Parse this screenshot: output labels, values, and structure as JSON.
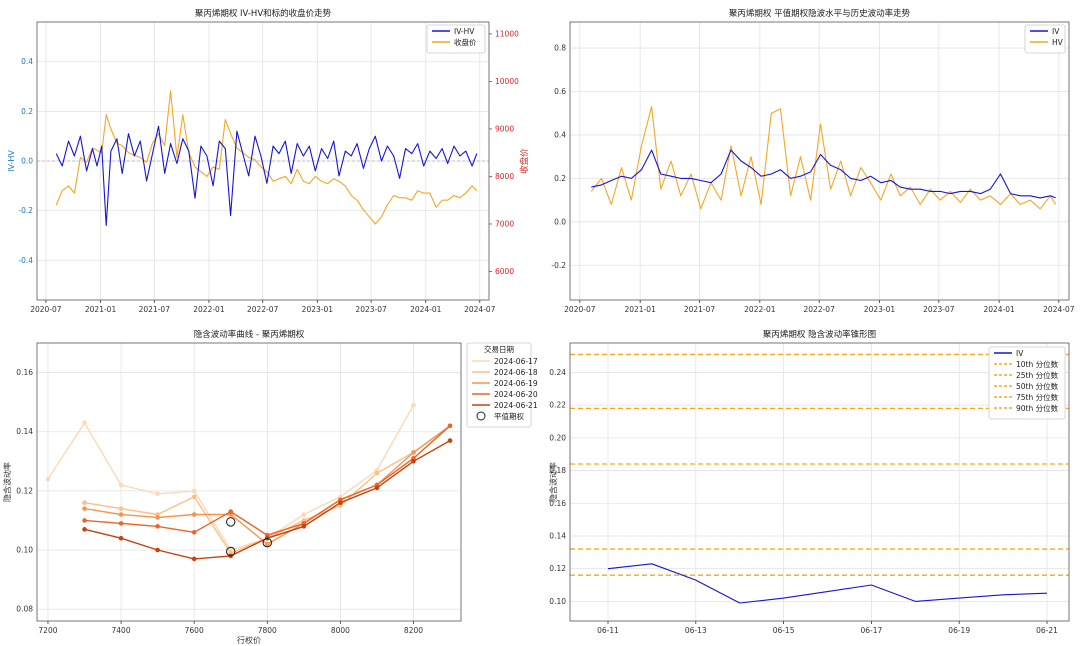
{
  "chart_data": [
    {
      "type": "line",
      "title": "聚丙烯期权 IV-HV和标的收盘价走势",
      "xlabel": "",
      "ylabel": "IV-HV",
      "y2label": "收盘价",
      "xlim": [
        "2020-06-01",
        "2024-08-01"
      ],
      "ylim": [
        -0.56,
        0.56
      ],
      "y2lim": [
        5400,
        11250
      ],
      "xticks": [
        "2020-07",
        "2021-01",
        "2021-07",
        "2022-01",
        "2022-07",
        "2023-01",
        "2023-07",
        "2024-01",
        "2024-07"
      ],
      "yticks": [
        -0.4,
        -0.2,
        0.0,
        0.2,
        0.4
      ],
      "y2ticks": [
        6000,
        7000,
        8000,
        9000,
        10000,
        11000
      ],
      "grid": true,
      "legend_position": "top-right",
      "colors": {
        "IV-HV": "#1515d6",
        "收盘价": "#f5a623",
        "left_axis": "#1f77b4",
        "right_axis": "#d62728"
      },
      "series": [
        {
          "name": "IV-HV",
          "axis": "left",
          "x": [
            "2020-08-05",
            "2020-08-25",
            "2020-09-15",
            "2020-10-05",
            "2020-10-25",
            "2020-11-15",
            "2020-12-05",
            "2020-12-20",
            "2021-01-05",
            "2021-01-20",
            "2021-02-05",
            "2021-02-25",
            "2021-03-15",
            "2021-04-05",
            "2021-04-25",
            "2021-05-15",
            "2021-06-05",
            "2021-06-25",
            "2021-07-15",
            "2021-08-05",
            "2021-08-25",
            "2021-09-15",
            "2021-10-05",
            "2021-10-25",
            "2021-11-15",
            "2021-12-05",
            "2021-12-25",
            "2022-01-15",
            "2022-02-05",
            "2022-02-25",
            "2022-03-15",
            "2022-04-05",
            "2022-04-25",
            "2022-05-15",
            "2022-06-05",
            "2022-06-25",
            "2022-07-15",
            "2022-08-05",
            "2022-08-25",
            "2022-09-15",
            "2022-10-05",
            "2022-10-25",
            "2022-11-15",
            "2022-12-05",
            "2022-12-25",
            "2023-01-15",
            "2023-02-05",
            "2023-02-25",
            "2023-03-15",
            "2023-04-05",
            "2023-04-25",
            "2023-05-15",
            "2023-06-05",
            "2023-06-25",
            "2023-07-15",
            "2023-08-05",
            "2023-08-25",
            "2023-09-15",
            "2023-10-05",
            "2023-10-25",
            "2023-11-15",
            "2023-12-05",
            "2023-12-25",
            "2024-01-15",
            "2024-02-05",
            "2024-02-25",
            "2024-03-15",
            "2024-04-05",
            "2024-04-25",
            "2024-05-15",
            "2024-06-05",
            "2024-06-21"
          ],
          "values": [
            0.03,
            -0.02,
            0.08,
            0.02,
            0.1,
            -0.04,
            0.05,
            -0.02,
            0.06,
            -0.26,
            0.04,
            0.09,
            -0.05,
            0.11,
            0.02,
            0.08,
            -0.08,
            0.03,
            0.14,
            -0.05,
            0.07,
            -0.01,
            0.09,
            0.04,
            -0.15,
            0.06,
            0.02,
            -0.1,
            0.08,
            0.05,
            -0.22,
            0.12,
            0.03,
            -0.06,
            0.1,
            0.02,
            -0.09,
            0.06,
            0.03,
            0.08,
            -0.05,
            0.07,
            0.02,
            0.06,
            -0.04,
            0.05,
            0.01,
            0.08,
            -0.06,
            0.04,
            0.02,
            0.07,
            -0.03,
            0.05,
            0.1,
            0.0,
            0.06,
            0.02,
            -0.07,
            0.05,
            0.03,
            0.07,
            -0.02,
            0.04,
            0.01,
            0.05,
            -0.01,
            0.06,
            0.02,
            0.04,
            -0.02,
            0.03
          ]
        },
        {
          "name": "收盘价",
          "axis": "right",
          "x": [
            "2020-08-05",
            "2020-08-25",
            "2020-09-15",
            "2020-10-05",
            "2020-10-25",
            "2020-11-15",
            "2020-12-05",
            "2020-12-20",
            "2021-01-05",
            "2021-01-20",
            "2021-02-05",
            "2021-02-25",
            "2021-03-15",
            "2021-04-05",
            "2021-04-25",
            "2021-05-15",
            "2021-06-05",
            "2021-06-25",
            "2021-07-15",
            "2021-08-05",
            "2021-08-25",
            "2021-09-15",
            "2021-10-05",
            "2021-10-25",
            "2021-11-15",
            "2021-12-05",
            "2021-12-25",
            "2022-01-15",
            "2022-02-05",
            "2022-02-25",
            "2022-03-15",
            "2022-04-05",
            "2022-04-25",
            "2022-05-15",
            "2022-06-05",
            "2022-06-25",
            "2022-07-15",
            "2022-08-05",
            "2022-08-25",
            "2022-09-15",
            "2022-10-05",
            "2022-10-25",
            "2022-11-15",
            "2022-12-05",
            "2022-12-25",
            "2023-01-15",
            "2023-02-05",
            "2023-02-25",
            "2023-03-15",
            "2023-04-05",
            "2023-04-25",
            "2023-05-15",
            "2023-06-05",
            "2023-06-25",
            "2023-07-15",
            "2023-08-05",
            "2023-08-25",
            "2023-09-15",
            "2023-10-05",
            "2023-10-25",
            "2023-11-15",
            "2023-12-05",
            "2023-12-25",
            "2024-01-15",
            "2024-02-05",
            "2024-02-25",
            "2024-03-15",
            "2024-04-05",
            "2024-04-25",
            "2024-05-15",
            "2024-06-05",
            "2024-06-21"
          ],
          "values": [
            7400,
            7700,
            7800,
            7650,
            8400,
            8300,
            8600,
            8550,
            8500,
            9300,
            9000,
            8700,
            8650,
            8500,
            8450,
            8400,
            8300,
            8700,
            8900,
            8650,
            9800,
            8400,
            9300,
            8500,
            8200,
            8100,
            8000,
            8200,
            8150,
            9200,
            8900,
            8600,
            8500,
            8400,
            8350,
            8200,
            8100,
            7900,
            7950,
            8000,
            7850,
            8150,
            7900,
            7850,
            8000,
            7900,
            7850,
            7950,
            7900,
            7800,
            7600,
            7500,
            7300,
            7150,
            7000,
            7150,
            7400,
            7600,
            7550,
            7550,
            7500,
            7700,
            7650,
            7650,
            7350,
            7500,
            7500,
            7600,
            7550,
            7650,
            7800,
            7700
          ]
        }
      ]
    },
    {
      "type": "line",
      "title": "聚丙烯期权 平值期权隐波水平与历史波动率走势",
      "xlabel": "",
      "ylabel": "",
      "xlim": [
        "2020-06-01",
        "2024-08-01"
      ],
      "ylim": [
        -0.36,
        0.92
      ],
      "xticks": [
        "2020-07",
        "2021-01",
        "2021-07",
        "2022-01",
        "2022-07",
        "2023-01",
        "2023-07",
        "2024-01",
        "2024-07"
      ],
      "yticks": [
        -0.2,
        0.0,
        0.2,
        0.4,
        0.6,
        0.8
      ],
      "grid": true,
      "legend_position": "top-right",
      "colors": {
        "IV": "#1515d6",
        "HV": "#f5a623"
      },
      "series": [
        {
          "name": "IV",
          "x": [
            "2020-08-05",
            "2020-09-05",
            "2020-10-05",
            "2020-11-05",
            "2020-12-05",
            "2021-01-05",
            "2021-02-05",
            "2021-03-05",
            "2021-04-05",
            "2021-05-05",
            "2021-06-05",
            "2021-07-05",
            "2021-08-05",
            "2021-09-05",
            "2021-10-05",
            "2021-11-05",
            "2021-12-05",
            "2022-01-05",
            "2022-02-05",
            "2022-03-05",
            "2022-04-05",
            "2022-05-05",
            "2022-06-05",
            "2022-07-05",
            "2022-08-05",
            "2022-09-05",
            "2022-10-05",
            "2022-11-05",
            "2022-12-05",
            "2023-01-05",
            "2023-02-05",
            "2023-03-05",
            "2023-04-05",
            "2023-05-05",
            "2023-06-05",
            "2023-07-05",
            "2023-08-05",
            "2023-09-05",
            "2023-10-05",
            "2023-11-05",
            "2023-12-05",
            "2024-01-05",
            "2024-02-05",
            "2024-03-05",
            "2024-04-05",
            "2024-05-05",
            "2024-06-05",
            "2024-06-21"
          ],
          "values": [
            0.16,
            0.17,
            0.19,
            0.21,
            0.2,
            0.24,
            0.33,
            0.22,
            0.21,
            0.2,
            0.2,
            0.19,
            0.18,
            0.22,
            0.33,
            0.28,
            0.25,
            0.21,
            0.22,
            0.24,
            0.2,
            0.21,
            0.23,
            0.31,
            0.26,
            0.24,
            0.2,
            0.19,
            0.21,
            0.18,
            0.19,
            0.16,
            0.15,
            0.15,
            0.14,
            0.14,
            0.13,
            0.14,
            0.14,
            0.13,
            0.15,
            0.22,
            0.13,
            0.12,
            0.12,
            0.11,
            0.12,
            0.11
          ]
        },
        {
          "name": "HV",
          "x": [
            "2020-08-05",
            "2020-09-05",
            "2020-10-05",
            "2020-11-05",
            "2020-12-05",
            "2021-01-05",
            "2021-02-05",
            "2021-03-05",
            "2021-04-05",
            "2021-05-05",
            "2021-06-05",
            "2021-07-05",
            "2021-08-05",
            "2021-09-05",
            "2021-10-05",
            "2021-11-05",
            "2021-12-05",
            "2022-01-05",
            "2022-02-05",
            "2022-03-05",
            "2022-04-05",
            "2022-05-05",
            "2022-06-05",
            "2022-07-05",
            "2022-08-05",
            "2022-09-05",
            "2022-10-05",
            "2022-11-05",
            "2022-12-05",
            "2023-01-05",
            "2023-02-05",
            "2023-03-05",
            "2023-04-05",
            "2023-05-05",
            "2023-06-05",
            "2023-07-05",
            "2023-08-05",
            "2023-09-05",
            "2023-10-05",
            "2023-11-05",
            "2023-12-05",
            "2024-01-05",
            "2024-02-05",
            "2024-03-05",
            "2024-04-05",
            "2024-05-05",
            "2024-06-05",
            "2024-06-21"
          ],
          "values": [
            0.14,
            0.2,
            0.08,
            0.25,
            0.1,
            0.35,
            0.53,
            0.15,
            0.28,
            0.12,
            0.22,
            0.06,
            0.18,
            0.1,
            0.35,
            0.12,
            0.3,
            0.08,
            0.5,
            0.52,
            0.12,
            0.3,
            0.1,
            0.45,
            0.15,
            0.28,
            0.12,
            0.25,
            0.18,
            0.1,
            0.22,
            0.12,
            0.16,
            0.08,
            0.15,
            0.1,
            0.14,
            0.09,
            0.15,
            0.1,
            0.12,
            0.08,
            0.13,
            0.08,
            0.1,
            0.06,
            0.12,
            0.08
          ]
        }
      ]
    },
    {
      "type": "line",
      "title": "隐含波动率曲线 - 聚丙烯期权",
      "xlabel": "行权价",
      "ylabel": "隐含波动率",
      "xlim": [
        7170,
        8330
      ],
      "ylim": [
        0.076,
        0.17
      ],
      "xticks": [
        7200,
        7400,
        7600,
        7800,
        8000,
        8200
      ],
      "yticks": [
        0.08,
        0.1,
        0.12,
        0.14,
        0.16
      ],
      "grid": true,
      "legend_position": "outside-right",
      "legend_title": "交易日期",
      "colors": {
        "2024-06-17": "#fdd9b5",
        "2024-06-18": "#fdbf86",
        "2024-06-19": "#f9944f",
        "2024-06-20": "#e8672a",
        "2024-06-21": "#c4430f"
      },
      "series": [
        {
          "name": "2024-06-17",
          "x": [
            7200,
            7300,
            7400,
            7500,
            7600,
            7700,
            7800,
            7900,
            8000,
            8100,
            8200
          ],
          "values": [
            0.124,
            0.143,
            0.122,
            0.119,
            0.12,
            0.1,
            0.104,
            0.112,
            0.118,
            0.127,
            0.149
          ]
        },
        {
          "name": "2024-06-18",
          "x": [
            7300,
            7400,
            7500,
            7600,
            7700,
            7800,
            7900,
            8000,
            8100,
            8200,
            8300
          ],
          "values": [
            0.116,
            0.114,
            0.112,
            0.118,
            0.099,
            0.104,
            0.11,
            0.115,
            0.126,
            0.133,
            0.142
          ]
        },
        {
          "name": "2024-06-19",
          "x": [
            7300,
            7400,
            7500,
            7600,
            7700,
            7800,
            7900,
            8000,
            8100,
            8200,
            8300
          ],
          "values": [
            0.114,
            0.112,
            0.111,
            0.112,
            0.112,
            0.102,
            0.109,
            0.117,
            0.122,
            0.133,
            0.142
          ]
        },
        {
          "name": "2024-06-20",
          "x": [
            7300,
            7400,
            7500,
            7600,
            7700,
            7800,
            7900,
            8000,
            8100,
            8200,
            8300
          ],
          "values": [
            0.11,
            0.109,
            0.108,
            0.106,
            0.113,
            0.105,
            0.109,
            0.117,
            0.122,
            0.131,
            0.142
          ]
        },
        {
          "name": "2024-06-21",
          "x": [
            7300,
            7400,
            7500,
            7600,
            7700,
            7800,
            7900,
            8000,
            8100,
            8200,
            8300
          ],
          "values": [
            0.107,
            0.104,
            0.1,
            0.097,
            0.098,
            0.104,
            0.108,
            0.116,
            0.121,
            0.13,
            0.137
          ]
        }
      ],
      "atm_label": "平值期权",
      "atm_points": [
        {
          "x": 7700,
          "y": 0.1095
        },
        {
          "x": 7700,
          "y": 0.0995
        },
        {
          "x": 7800,
          "y": 0.1025
        }
      ]
    },
    {
      "type": "line",
      "title": "聚丙烯期权 隐含波动率锥形图",
      "xlabel": "",
      "ylabel": "隐含波动率",
      "ylim": [
        0.088,
        0.258
      ],
      "yticks": [
        0.1,
        0.12,
        0.14,
        0.16,
        0.18,
        0.2,
        0.22,
        0.24
      ],
      "xticks": [
        "06-11",
        "06-13",
        "06-15",
        "06-17",
        "06-19",
        "06-21"
      ],
      "grid": true,
      "legend_position": "top-right",
      "colors": {
        "IV": "#1515d6",
        "quantiles": "#f5a623"
      },
      "series": [
        {
          "name": "IV",
          "x": [
            "06-11",
            "06-12",
            "06-13",
            "06-14",
            "06-15",
            "06-16",
            "06-17",
            "06-18",
            "06-19",
            "06-20",
            "06-21"
          ],
          "values": [
            0.12,
            0.123,
            0.113,
            0.099,
            0.102,
            0.106,
            0.11,
            0.1,
            0.102,
            0.104,
            0.105
          ]
        }
      ],
      "quantiles": [
        {
          "name": "10th 分位数",
          "value": 0.116
        },
        {
          "name": "25th 分位数",
          "value": 0.132
        },
        {
          "name": "50th 分位数",
          "value": 0.184
        },
        {
          "name": "75th 分位数",
          "value": 0.218
        },
        {
          "name": "90th 分位数",
          "value": 0.251
        }
      ]
    }
  ]
}
